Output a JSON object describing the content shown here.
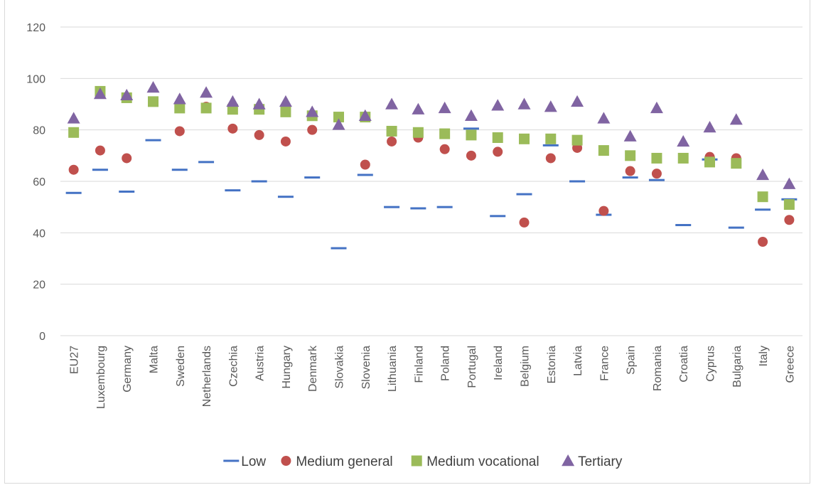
{
  "chart_data": {
    "type": "scatter",
    "categories": [
      "EU27",
      "Luxembourg",
      "Germany",
      "Malta",
      "Sweden",
      "Netherlands",
      "Czechia",
      "Austria",
      "Hungary",
      "Denmark",
      "Slovakia",
      "Slovenia",
      "Lithuania",
      "Finland",
      "Poland",
      "Portugal",
      "Ireland",
      "Belgium",
      "Estonia",
      "Latvia",
      "France",
      "Spain",
      "Romania",
      "Croatia",
      "Cyprus",
      "Bulgaria",
      "Italy",
      "Greece"
    ],
    "ylim": [
      0,
      120
    ],
    "yticks": [
      0,
      20,
      40,
      60,
      80,
      100,
      120
    ],
    "grid": true,
    "legend_position": "bottom",
    "series": [
      {
        "name": "Low",
        "marker": "dash",
        "color": "#4472c4",
        "values": [
          55.5,
          64.5,
          56,
          76,
          64.5,
          67.5,
          56.5,
          60,
          54,
          61.5,
          34,
          62.5,
          50,
          49.5,
          50,
          80.5,
          46.5,
          55,
          74,
          60,
          47,
          61.5,
          60.5,
          43,
          68.5,
          42,
          49,
          53
        ]
      },
      {
        "name": "Medium general",
        "marker": "circle",
        "color": "#c0504d",
        "values": [
          64.5,
          72,
          69,
          null,
          79.5,
          89,
          80.5,
          78,
          75.5,
          80,
          null,
          66.5,
          75.5,
          77,
          72.5,
          70,
          71.5,
          44,
          69,
          73,
          48.5,
          64,
          63,
          null,
          69.5,
          69,
          36.5,
          45
        ]
      },
      {
        "name": "Medium vocational",
        "marker": "square",
        "color": "#9bbb59",
        "values": [
          79,
          95,
          92.5,
          91,
          88.5,
          88.5,
          88,
          88,
          87,
          85.5,
          85,
          85,
          79.5,
          79,
          78.5,
          78,
          77,
          76.5,
          76.5,
          76,
          72,
          70,
          69,
          69,
          67.5,
          67,
          54,
          51
        ]
      },
      {
        "name": "Tertiary",
        "marker": "triangle",
        "color": "#8064a2",
        "values": [
          84.5,
          94,
          93.5,
          96.5,
          92,
          94.5,
          91,
          90,
          91,
          87,
          82,
          85.5,
          90,
          88,
          88.5,
          85.5,
          89.5,
          90,
          89,
          91,
          84.5,
          77.5,
          88.5,
          75.5,
          81,
          84,
          62.5,
          59
        ]
      }
    ]
  }
}
